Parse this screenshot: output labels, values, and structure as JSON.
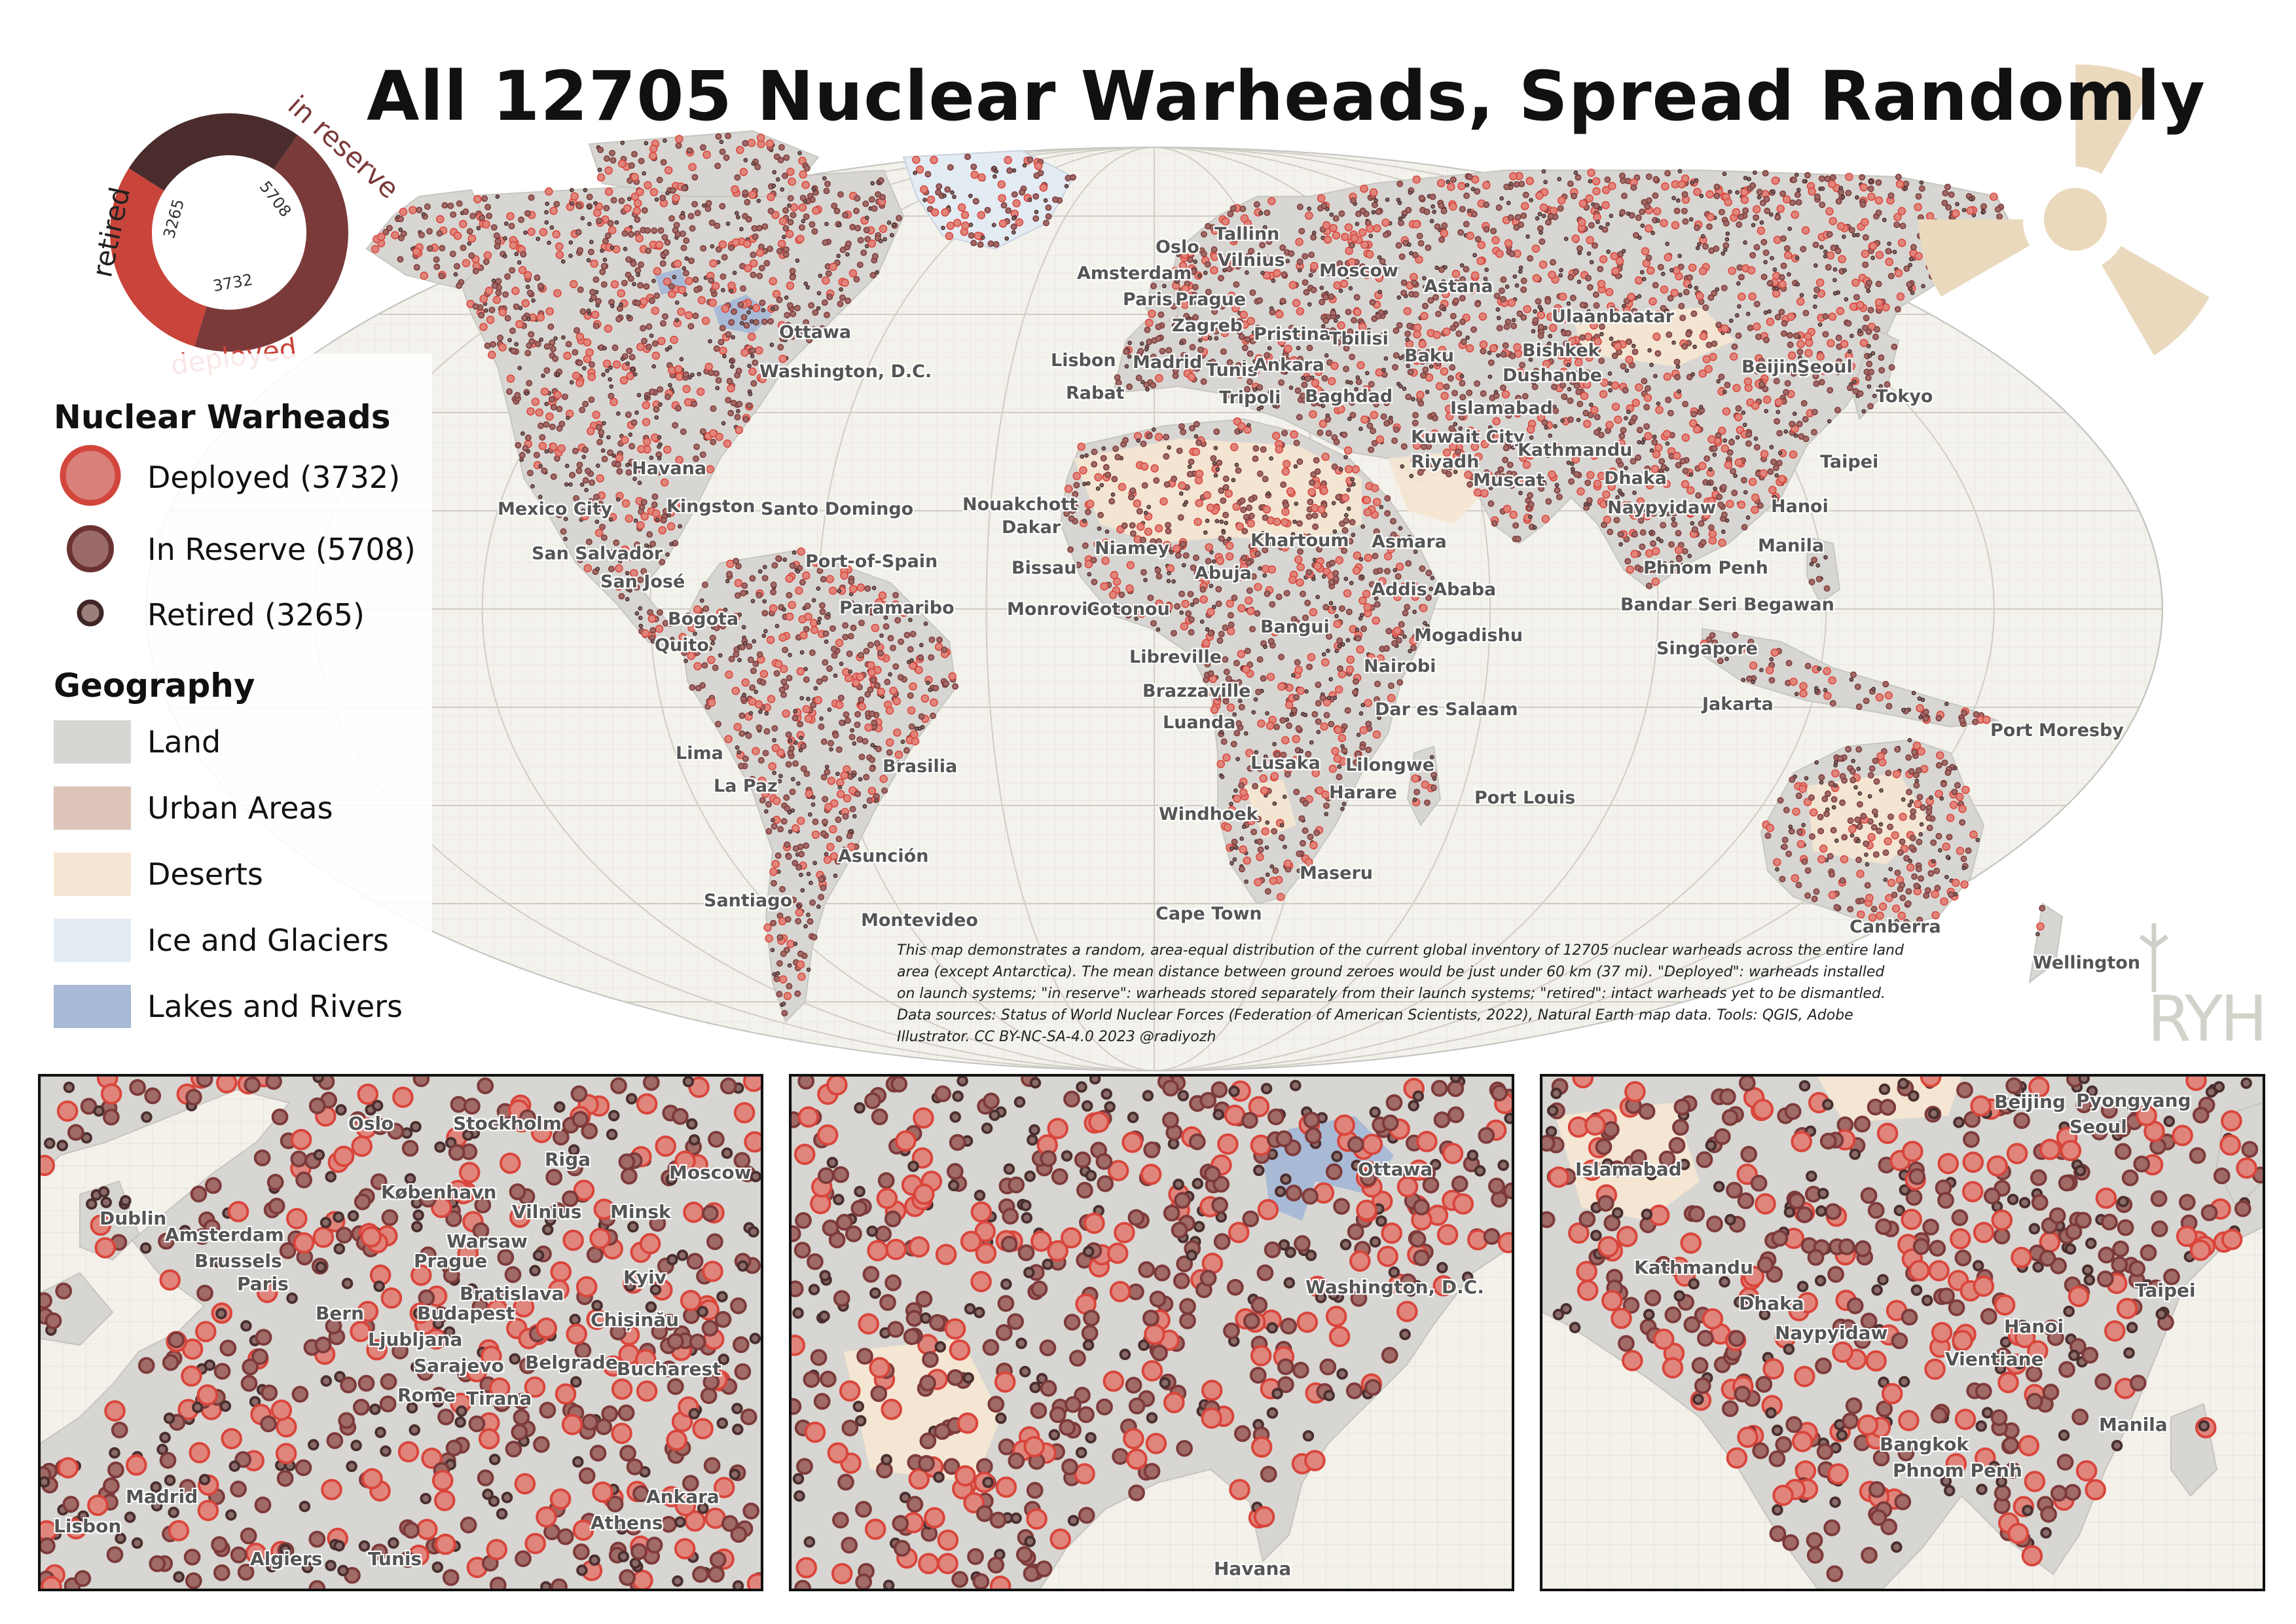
{
  "title": "All 12705 Nuclear Warheads, Spread Randomly",
  "donut": {
    "segments": [
      {
        "key": "retired",
        "label": "retired",
        "value": 3265,
        "value_text": "3265",
        "color": "#4a2c2c"
      },
      {
        "key": "reserve",
        "label": "in reserve",
        "value": 5708,
        "value_text": "5708",
        "color": "#7a3a3a"
      },
      {
        "key": "deployed",
        "label": "deployed",
        "value": 3732,
        "value_text": "3732",
        "color": "#c9443a"
      }
    ]
  },
  "legend": {
    "warheads_heading": "Nuclear Warheads",
    "deployed": "Deployed (3732)",
    "reserve": "In Reserve (5708)",
    "retired": "Retired (3265)",
    "geography_heading": "Geography",
    "land": "Land",
    "urban": "Urban Areas",
    "deserts": "Deserts",
    "ice": "Ice and Glaciers",
    "lakes": "Lakes and Rivers"
  },
  "colors": {
    "deployed": "#d9453b",
    "reserve": "#7d3a3a",
    "retired": "#4a2e2e",
    "land": "#d7d6d2",
    "urban": "#dcc5b8",
    "desert": "#f4e6d2",
    "ice": "#e3ebf3",
    "lakes": "#a9bad6",
    "radiation": "#ead9bd",
    "ocean": "#f4f2ec"
  },
  "note": "This map demonstrates a random, area-equal distribution of the current global inventory of 12705 nuclear warheads across the entire land area (except Antarctica). The mean distance between ground zeroes would be just under 60 km (37 mi). \"Deployed\": warheads installed on launch systems; \"in reserve\": warheads stored separately from their launch systems; \"retired\": intact warheads yet to be dismantled. Data sources: Status of World Nuclear Forces (Federation of American Scientists, 2022), Natural Earth map data. Tools: QGIS, Adobe Illustrator. CC BY-NC-SA-4.0 2023 @radiyozh",
  "logo_text": "RYH",
  "world_cities": [
    "Tallinn",
    "Oslo",
    "Vilnius",
    "Amsterdam",
    "Moscow",
    "Astana",
    "Paris",
    "Prague",
    "Zagreb",
    "Ulaanbaatar",
    "Pristina",
    "Tbilisi",
    "Bishkek",
    "Lisbon",
    "Madrid",
    "Tunis",
    "Ankara",
    "Baku",
    "Beijing",
    "Seoul",
    "Rabat",
    "Tripoli",
    "Baghdad",
    "Dushanbe",
    "Tokyo",
    "Islamabad",
    "Kuwait City",
    "Riyadh",
    "Kathmandu",
    "Muscat",
    "Taipei",
    "Dhaka",
    "Hanoi",
    "Naypyidaw",
    "Nouakchott",
    "Dakar",
    "Khartoum",
    "Asmara",
    "Niamey",
    "Abuja",
    "Manila",
    "Phnom Penh",
    "Bissau",
    "Addis Ababa",
    "Bandar Seri Begawan",
    "Monrovia",
    "Cotonou",
    "Mogadishu",
    "Bangui",
    "Singapore",
    "Libreville",
    "Nairobi",
    "Brazzaville",
    "Dar es Salaam",
    "Jakarta",
    "Port Moresby",
    "Luanda",
    "Lusaka",
    "Lilongwe",
    "Harare",
    "Port Louis",
    "Windhoek",
    "Maseru",
    "Cape Town",
    "Canberra",
    "Wellington",
    "Ottawa",
    "Washington,  D.C.",
    "Havana",
    "Mexico City",
    "Kingston",
    "Santo Domingo",
    "San Salvador",
    "San José",
    "Port-of-Spain",
    "Paramaribo",
    "Bogota",
    "Quito",
    "Lima",
    "La Paz",
    "Brasilia",
    "Asunción",
    "Santiago",
    "Montevideo"
  ],
  "inset_europe_cities": [
    "Oslo",
    "Stockholm",
    "Riga",
    "Moscow",
    "København",
    "Dublin",
    "Vilnius",
    "Minsk",
    "Amsterdam",
    "Warsaw",
    "Brussels",
    "Prague",
    "Kyiv",
    "Paris",
    "Bratislava",
    "Bern",
    "Budapest",
    "Chișinău",
    "Ljubljana",
    "Sarajevo",
    "Belgrade",
    "Bucharest",
    "Rome",
    "Tirana",
    "Madrid",
    "Ankara",
    "Lisbon",
    "Athens",
    "Algiers",
    "Tunis"
  ],
  "inset_usa_cities": [
    "Ottawa",
    "Washington,  D.C.",
    "Havana"
  ],
  "inset_asia_cities": [
    "Beijing",
    "Pyongyang",
    "Seoul",
    "Islamabad",
    "Kathmandu",
    "Taipei",
    "Dhaka",
    "Hanoi",
    "Naypyidaw",
    "Vientiane",
    "Manila",
    "Bangkok",
    "Phnom Penh"
  ]
}
